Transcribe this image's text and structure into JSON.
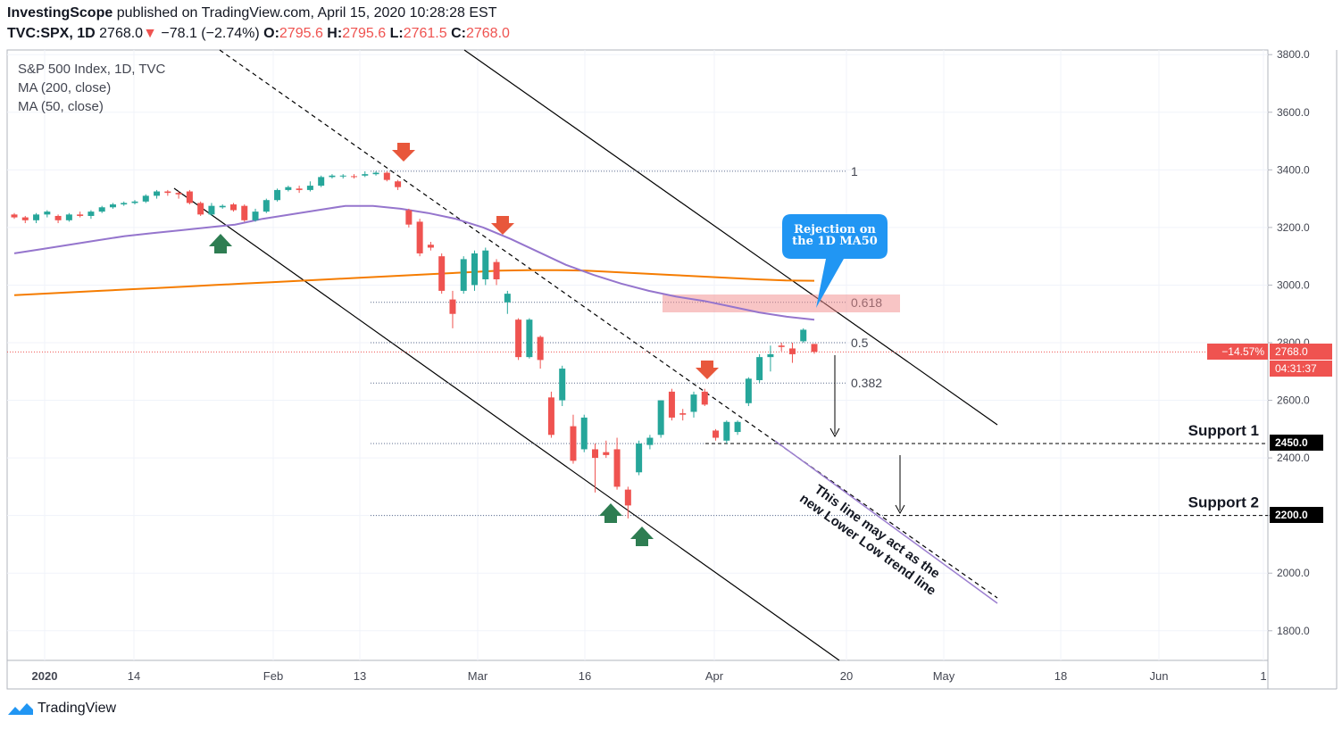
{
  "header": {
    "author": "InvestingScope",
    "published": "published on TradingView.com, April 15, 2020 10:28:28 EST",
    "symbol": "TVC:SPX, 1D",
    "last": "2768.0",
    "change": "−78.1 (−2.74%)",
    "o_label": "O:",
    "o": "2795.6",
    "h_label": "H:",
    "h": "2795.6",
    "l_label": "L:",
    "l": "2761.5",
    "c_label": "C:",
    "c": "2768.0"
  },
  "legend": [
    "S&P 500 Index, 1D, TVC",
    "MA (200, close)",
    "MA (50, close)"
  ],
  "footer": {
    "brand": "TradingView"
  },
  "colors": {
    "up": "#26a69a",
    "down": "#ef5350",
    "ma200": "#f57c00",
    "ma50": "#9575cd",
    "arrow_up": "#2e7d52",
    "arrow_down": "#e8573b",
    "callout": "#2196f3"
  },
  "chart_data": {
    "type": "candlestick",
    "title": "S&P 500 Index, 1D, TVC",
    "x_ticks": [
      "2020",
      "14",
      "Feb",
      "13",
      "Mar",
      "16",
      "Apr",
      "20",
      "May",
      "18",
      "Jun",
      "1"
    ],
    "y_ticks": [
      1800,
      2000,
      2200,
      2400,
      2600,
      2800,
      3000,
      3200,
      3400,
      3600,
      3800
    ],
    "y_tick_labels": [
      "1800.0",
      "2000.0",
      "2200.0",
      "2400.0",
      "2600.0",
      "2800.0",
      "3000.0",
      "3200.0",
      "3400.0",
      "3600.0",
      "3800.0"
    ],
    "ylim": [
      1700,
      3830
    ],
    "candles": [
      {
        "o": 3245,
        "h": 3250,
        "l": 3230,
        "c": 3235
      },
      {
        "o": 3235,
        "h": 3240,
        "l": 3215,
        "c": 3225
      },
      {
        "o": 3225,
        "h": 3250,
        "l": 3215,
        "c": 3245
      },
      {
        "o": 3245,
        "h": 3260,
        "l": 3235,
        "c": 3255
      },
      {
        "o": 3240,
        "h": 3245,
        "l": 3215,
        "c": 3225
      },
      {
        "o": 3225,
        "h": 3250,
        "l": 3220,
        "c": 3245
      },
      {
        "o": 3245,
        "h": 3255,
        "l": 3235,
        "c": 3240
      },
      {
        "o": 3240,
        "h": 3260,
        "l": 3230,
        "c": 3255
      },
      {
        "o": 3255,
        "h": 3275,
        "l": 3250,
        "c": 3270
      },
      {
        "o": 3270,
        "h": 3285,
        "l": 3265,
        "c": 3280
      },
      {
        "o": 3280,
        "h": 3290,
        "l": 3275,
        "c": 3285
      },
      {
        "o": 3285,
        "h": 3295,
        "l": 3280,
        "c": 3290
      },
      {
        "o": 3290,
        "h": 3315,
        "l": 3285,
        "c": 3310
      },
      {
        "o": 3310,
        "h": 3330,
        "l": 3300,
        "c": 3325
      },
      {
        "o": 3325,
        "h": 3330,
        "l": 3310,
        "c": 3320
      },
      {
        "o": 3320,
        "h": 3325,
        "l": 3300,
        "c": 3315
      },
      {
        "o": 3325,
        "h": 3330,
        "l": 3280,
        "c": 3285
      },
      {
        "o": 3285,
        "h": 3290,
        "l": 3240,
        "c": 3245
      },
      {
        "o": 3245,
        "h": 3285,
        "l": 3240,
        "c": 3275
      },
      {
        "o": 3270,
        "h": 3280,
        "l": 3265,
        "c": 3275
      },
      {
        "o": 3280,
        "h": 3285,
        "l": 3255,
        "c": 3260
      },
      {
        "o": 3275,
        "h": 3280,
        "l": 3220,
        "c": 3225
      },
      {
        "o": 3225,
        "h": 3265,
        "l": 3220,
        "c": 3255
      },
      {
        "o": 3255,
        "h": 3300,
        "l": 3250,
        "c": 3295
      },
      {
        "o": 3295,
        "h": 3335,
        "l": 3290,
        "c": 3330
      },
      {
        "o": 3330,
        "h": 3345,
        "l": 3325,
        "c": 3340
      },
      {
        "o": 3335,
        "h": 3345,
        "l": 3320,
        "c": 3330
      },
      {
        "o": 3330,
        "h": 3360,
        "l": 3325,
        "c": 3345
      },
      {
        "o": 3345,
        "h": 3380,
        "l": 3340,
        "c": 3375
      },
      {
        "o": 3375,
        "h": 3385,
        "l": 3370,
        "c": 3380
      },
      {
        "o": 3380,
        "h": 3385,
        "l": 3370,
        "c": 3380
      },
      {
        "o": 3378,
        "h": 3385,
        "l": 3370,
        "c": 3375
      },
      {
        "o": 3380,
        "h": 3395,
        "l": 3375,
        "c": 3385
      },
      {
        "o": 3385,
        "h": 3395,
        "l": 3380,
        "c": 3390
      },
      {
        "o": 3390,
        "h": 3395,
        "l": 3360,
        "c": 3365
      },
      {
        "o": 3360,
        "h": 3365,
        "l": 3330,
        "c": 3340
      },
      {
        "o": 3260,
        "h": 3265,
        "l": 3200,
        "c": 3210
      },
      {
        "o": 3220,
        "h": 3230,
        "l": 3100,
        "c": 3110
      },
      {
        "o": 3140,
        "h": 3150,
        "l": 3120,
        "c": 3130
      },
      {
        "o": 3100,
        "h": 3110,
        "l": 2970,
        "c": 2980
      },
      {
        "o": 2950,
        "h": 2980,
        "l": 2850,
        "c": 2900
      },
      {
        "o": 2980,
        "h": 3100,
        "l": 2970,
        "c": 3090
      },
      {
        "o": 3000,
        "h": 3120,
        "l": 2980,
        "c": 3110
      },
      {
        "o": 3020,
        "h": 3130,
        "l": 3000,
        "c": 3120
      },
      {
        "o": 3080,
        "h": 3090,
        "l": 3000,
        "c": 3020
      },
      {
        "o": 2940,
        "h": 2980,
        "l": 2900,
        "c": 2970
      },
      {
        "o": 2880,
        "h": 2885,
        "l": 2740,
        "c": 2750
      },
      {
        "o": 2750,
        "h": 2885,
        "l": 2745,
        "c": 2880
      },
      {
        "o": 2820,
        "h": 2825,
        "l": 2710,
        "c": 2740
      },
      {
        "o": 2610,
        "h": 2630,
        "l": 2470,
        "c": 2480
      },
      {
        "o": 2600,
        "h": 2720,
        "l": 2580,
        "c": 2710
      },
      {
        "o": 2510,
        "h": 2550,
        "l": 2380,
        "c": 2390
      },
      {
        "o": 2430,
        "h": 2550,
        "l": 2420,
        "c": 2540
      },
      {
        "o": 2430,
        "h": 2450,
        "l": 2280,
        "c": 2400
      },
      {
        "o": 2420,
        "h": 2460,
        "l": 2400,
        "c": 2410
      },
      {
        "o": 2430,
        "h": 2470,
        "l": 2290,
        "c": 2300
      },
      {
        "o": 2290,
        "h": 2300,
        "l": 2190,
        "c": 2235
      },
      {
        "o": 2350,
        "h": 2460,
        "l": 2340,
        "c": 2450
      },
      {
        "o": 2445,
        "h": 2480,
        "l": 2430,
        "c": 2470
      },
      {
        "o": 2480,
        "h": 2600,
        "l": 2470,
        "c": 2600
      },
      {
        "o": 2630,
        "h": 2640,
        "l": 2530,
        "c": 2540
      },
      {
        "o": 2555,
        "h": 2570,
        "l": 2530,
        "c": 2550
      },
      {
        "o": 2560,
        "h": 2630,
        "l": 2540,
        "c": 2620
      },
      {
        "o": 2630,
        "h": 2640,
        "l": 2580,
        "c": 2585
      },
      {
        "o": 2495,
        "h": 2500,
        "l": 2460,
        "c": 2470
      },
      {
        "o": 2460,
        "h": 2530,
        "l": 2450,
        "c": 2525
      },
      {
        "o": 2490,
        "h": 2530,
        "l": 2480,
        "c": 2525
      },
      {
        "o": 2590,
        "h": 2680,
        "l": 2580,
        "c": 2675
      },
      {
        "o": 2670,
        "h": 2760,
        "l": 2660,
        "c": 2750
      },
      {
        "o": 2750,
        "h": 2790,
        "l": 2700,
        "c": 2760
      },
      {
        "o": 2790,
        "h": 2800,
        "l": 2770,
        "c": 2785
      },
      {
        "o": 2780,
        "h": 2800,
        "l": 2730,
        "c": 2760
      },
      {
        "o": 2805,
        "h": 2850,
        "l": 2800,
        "c": 2845
      },
      {
        "o": 2795.6,
        "h": 2795.6,
        "l": 2761.5,
        "c": 2768
      }
    ],
    "ma200": [
      2965,
      2970,
      2975,
      2980,
      2985,
      2990,
      2995,
      3000,
      3005,
      3010,
      3015,
      3020,
      3025,
      3030,
      3035,
      3040,
      3045,
      3050,
      3052,
      3052,
      3050,
      3045,
      3040,
      3035,
      3030,
      3025,
      3020,
      3016,
      3015
    ],
    "ma50": [
      3110,
      3125,
      3140,
      3155,
      3170,
      3180,
      3190,
      3200,
      3210,
      3230,
      3245,
      3260,
      3275,
      3275,
      3265,
      3250,
      3230,
      3200,
      3160,
      3115,
      3070,
      3035,
      3005,
      2980,
      2960,
      2945,
      2925,
      2905,
      2890,
      2880
    ],
    "fib_levels": [
      {
        "label": "1",
        "value": 3395
      },
      {
        "label": "0.618",
        "value": 2940
      },
      {
        "label": "0.5",
        "value": 2800
      },
      {
        "label": "0.382",
        "value": 2660
      }
    ],
    "support_levels": [
      {
        "label": "Support 1",
        "value": 2450
      },
      {
        "label": "Support 2",
        "value": 2200
      }
    ],
    "price_tags": {
      "last_pct": "−14.57%",
      "last": "2768.0",
      "timer": "04:31:37",
      "s1": "2450.0",
      "s2": "2200.0"
    },
    "annotations": {
      "callout": [
        "Rejection on",
        "the 1D MA50"
      ],
      "trendline_note": [
        "This line may act as the",
        "new Lower Low trend line"
      ]
    }
  }
}
